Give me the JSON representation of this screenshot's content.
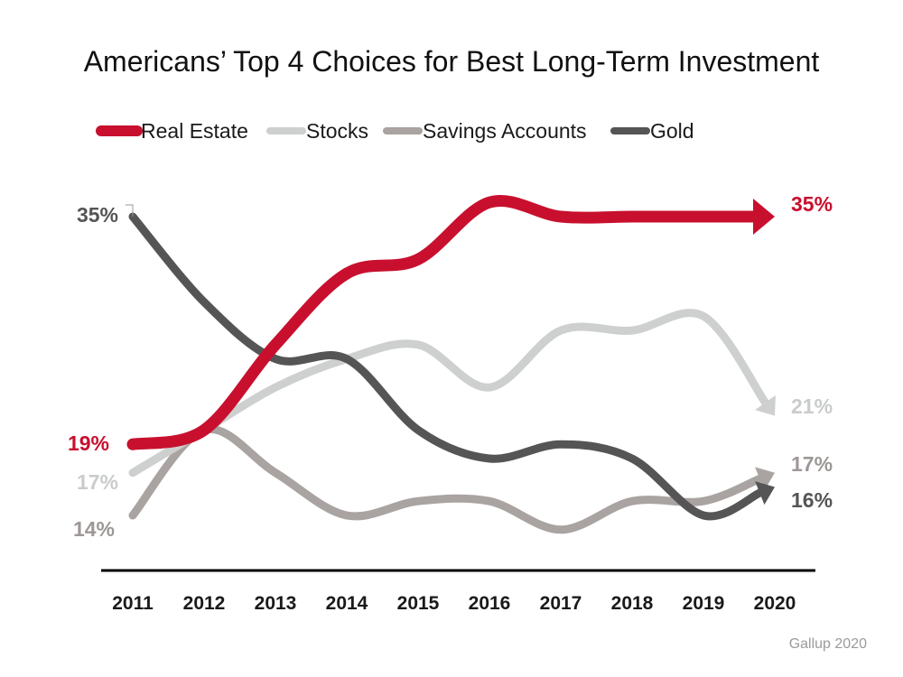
{
  "chart_data": {
    "type": "line",
    "title": "Americans’ Top 4 Choices for Best Long-Term Investment",
    "source": "Gallup 2020",
    "categories": [
      "2011",
      "2012",
      "2013",
      "2014",
      "2015",
      "2016",
      "2017",
      "2018",
      "2019",
      "2020"
    ],
    "legend_position": "top",
    "grid": false,
    "series": [
      {
        "name": "Real Estate",
        "color": "#c8102e",
        "values": [
          19,
          20,
          26,
          31,
          32,
          36,
          35,
          35,
          35,
          35
        ],
        "start_label": "19%",
        "end_label": "35%"
      },
      {
        "name": "Stocks",
        "color": "#cdd0cf",
        "values": [
          17,
          20,
          23,
          25,
          26,
          23,
          27,
          27,
          28,
          21
        ],
        "start_label": "17%",
        "end_label": "21%"
      },
      {
        "name": "Savings Accounts",
        "color": "#a9a3a1",
        "values": [
          14,
          20,
          17,
          14,
          15,
          15,
          13,
          15,
          15,
          17
        ],
        "start_label": "14%",
        "end_label": "17%"
      },
      {
        "name": "Gold",
        "color": "#555555",
        "values": [
          35,
          29,
          25,
          25,
          20,
          18,
          19,
          18,
          14,
          16
        ],
        "start_label": "35%",
        "end_label": "16%"
      }
    ]
  }
}
